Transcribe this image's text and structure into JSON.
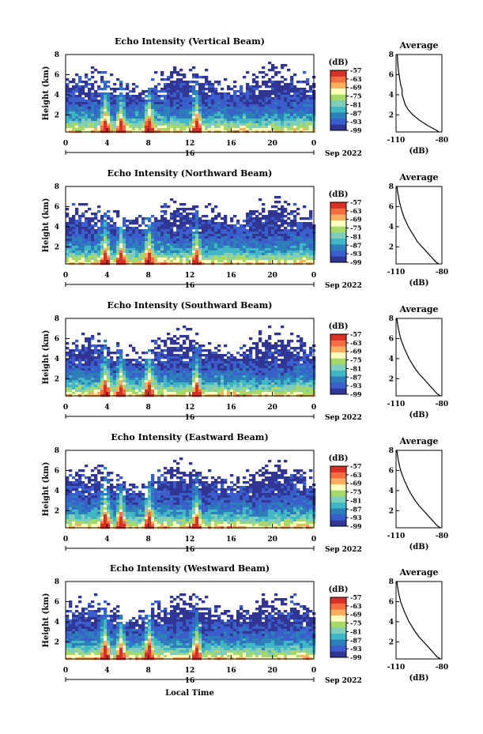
{
  "figure": {
    "x_axis_label": "Local Time",
    "date_label": "Sep 2022",
    "day_label": "16",
    "colorbar_unit": "(dB)",
    "average_title": "Average",
    "average_xlabel": "(dB)"
  },
  "colors": {
    "colormap": [
      "#313695",
      "#3a5fcd",
      "#2c7fb8",
      "#41b6c4",
      "#7fcdbb",
      "#a6d96a",
      "#ffffbf",
      "#fdae61",
      "#f46d43",
      "#d73027"
    ],
    "background": "#ffffff",
    "axis": "#000000"
  },
  "chart_data": [
    {
      "type": "heatmap",
      "title": "Echo Intensity (Vertical Beam)",
      "ylabel": "Height (km)",
      "xlabel": "",
      "x_ticks": [
        "0",
        "4",
        "8",
        "12",
        "16",
        "20",
        "0"
      ],
      "y_ticks": [
        "2",
        "4",
        "6",
        "8"
      ],
      "xlim": [
        0,
        24
      ],
      "ylim": [
        0.3,
        8
      ],
      "colorbar": {
        "label": "(dB)",
        "ticks": [
          "-57",
          "-63",
          "-69",
          "-75",
          "-81",
          "-87",
          "-93",
          "-99"
        ],
        "range": [
          -99,
          -57
        ]
      },
      "spikes_hours": [
        3.7,
        5.2,
        7.9,
        12.5
      ],
      "average_profile": {
        "title": "Average",
        "xlabel": "(dB)",
        "x_ticks": [
          "-110",
          "-80"
        ],
        "xlim": [
          -110,
          -80
        ],
        "y_ticks": [
          "2",
          "4",
          "6",
          "8"
        ],
        "ylim": [
          0.3,
          8
        ],
        "height": [
          0.3,
          0.5,
          1.0,
          1.5,
          2.0,
          2.5,
          3.0,
          3.5,
          4.0,
          4.5,
          5.0,
          5.5,
          6.0,
          6.5,
          7.0,
          7.5,
          8.0
        ],
        "db": [
          -82,
          -84,
          -90,
          -95,
          -99,
          -102,
          -104,
          -105,
          -106,
          -106,
          -107,
          -107.5,
          -108,
          -108.5,
          -108.8,
          -109,
          -109.2
        ]
      }
    },
    {
      "type": "heatmap",
      "title": "Echo Intensity (Northward Beam)",
      "ylabel": "Height (km)",
      "xlabel": "",
      "x_ticks": [
        "0",
        "4",
        "8",
        "12",
        "16",
        "20",
        "0"
      ],
      "y_ticks": [
        "2",
        "4",
        "6",
        "8"
      ],
      "xlim": [
        0,
        24
      ],
      "ylim": [
        0.3,
        8
      ],
      "colorbar": {
        "label": "(dB)",
        "ticks": [
          "-57",
          "-63",
          "-69",
          "-75",
          "-81",
          "-87",
          "-93",
          "-99"
        ],
        "range": [
          -99,
          -57
        ]
      },
      "spikes_hours": [
        3.7,
        5.2,
        7.9,
        12.5
      ],
      "average_profile": {
        "title": "Average",
        "xlabel": "(dB)",
        "x_ticks": [
          "-110",
          "-80"
        ],
        "xlim": [
          -110,
          -80
        ],
        "y_ticks": [
          "2",
          "4",
          "6",
          "8"
        ],
        "ylim": [
          0.3,
          8
        ],
        "height": [
          0.3,
          0.5,
          1.0,
          1.5,
          2.0,
          2.5,
          3.0,
          3.5,
          4.0,
          4.5,
          5.0,
          5.5,
          6.0,
          6.5,
          7.0,
          7.5,
          8.0
        ],
        "db": [
          -82,
          -84,
          -87,
          -90,
          -93,
          -96,
          -98,
          -100,
          -102,
          -103.5,
          -105,
          -106,
          -107,
          -107.8,
          -108.4,
          -109,
          -109.4
        ]
      }
    },
    {
      "type": "heatmap",
      "title": "Echo Intensity (Southward Beam)",
      "ylabel": "Height (km)",
      "xlabel": "",
      "x_ticks": [
        "0",
        "4",
        "8",
        "12",
        "16",
        "20",
        "0"
      ],
      "y_ticks": [
        "2",
        "4",
        "6",
        "8"
      ],
      "xlim": [
        0,
        24
      ],
      "ylim": [
        0.3,
        8
      ],
      "colorbar": {
        "label": "(dB)",
        "ticks": [
          "-57",
          "-63",
          "-69",
          "-75",
          "-81",
          "-87",
          "-93",
          "-99"
        ],
        "range": [
          -99,
          -57
        ]
      },
      "spikes_hours": [
        3.7,
        5.2,
        7.9,
        12.5
      ],
      "average_profile": {
        "title": "Average",
        "xlabel": "(dB)",
        "x_ticks": [
          "-110",
          "-80"
        ],
        "xlim": [
          -110,
          -80
        ],
        "y_ticks": [
          "2",
          "4",
          "6",
          "8"
        ],
        "ylim": [
          0.3,
          8
        ],
        "height": [
          0.3,
          0.5,
          1.0,
          1.5,
          2.0,
          2.5,
          3.0,
          3.5,
          4.0,
          4.5,
          5.0,
          5.5,
          6.0,
          6.5,
          7.0,
          7.5,
          8.0
        ],
        "db": [
          -81,
          -83,
          -86,
          -89,
          -92,
          -95,
          -97.5,
          -99.5,
          -101.5,
          -103,
          -104.5,
          -105.8,
          -107,
          -107.8,
          -108.5,
          -109,
          -109.5
        ]
      }
    },
    {
      "type": "heatmap",
      "title": "Echo Intensity (Eastward Beam)",
      "ylabel": "Height (km)",
      "xlabel": "",
      "x_ticks": [
        "0",
        "4",
        "8",
        "12",
        "16",
        "20",
        "0"
      ],
      "y_ticks": [
        "2",
        "4",
        "6",
        "8"
      ],
      "xlim": [
        0,
        24
      ],
      "ylim": [
        0.3,
        8
      ],
      "colorbar": {
        "label": "(dB)",
        "ticks": [
          "-57",
          "-63",
          "-69",
          "-75",
          "-81",
          "-87",
          "-93",
          "-99"
        ],
        "range": [
          -99,
          -57
        ]
      },
      "spikes_hours": [
        3.7,
        5.2,
        7.9,
        12.5
      ],
      "average_profile": {
        "title": "Average",
        "xlabel": "(dB)",
        "x_ticks": [
          "-110",
          "-80"
        ],
        "xlim": [
          -110,
          -80
        ],
        "y_ticks": [
          "2",
          "4",
          "6",
          "8"
        ],
        "ylim": [
          0.3,
          8
        ],
        "height": [
          0.3,
          0.5,
          1.0,
          1.5,
          2.0,
          2.5,
          3.0,
          3.5,
          4.0,
          4.5,
          5.0,
          5.5,
          6.0,
          6.5,
          7.0,
          7.5,
          8.0
        ],
        "db": [
          -81,
          -83,
          -86,
          -89,
          -92,
          -95,
          -97.5,
          -99.5,
          -101.5,
          -103,
          -104.5,
          -105.8,
          -107,
          -107.8,
          -108.5,
          -109,
          -109.5
        ]
      }
    },
    {
      "type": "heatmap",
      "title": "Echo Intensity (Westward Beam)",
      "ylabel": "Height (km)",
      "xlabel": "Local Time",
      "x_ticks": [
        "0",
        "4",
        "8",
        "12",
        "16",
        "20",
        "0"
      ],
      "y_ticks": [
        "2",
        "4",
        "6",
        "8"
      ],
      "xlim": [
        0,
        24
      ],
      "ylim": [
        0.3,
        8
      ],
      "colorbar": {
        "label": "(dB)",
        "ticks": [
          "-57",
          "-63",
          "-69",
          "-75",
          "-81",
          "-87",
          "-93",
          "-99"
        ],
        "range": [
          -99,
          -57
        ]
      },
      "spikes_hours": [
        3.7,
        5.2,
        7.9,
        12.5
      ],
      "average_profile": {
        "title": "Average",
        "xlabel": "(dB)",
        "x_ticks": [
          "-110",
          "-80"
        ],
        "xlim": [
          -110,
          -80
        ],
        "y_ticks": [
          "2",
          "4",
          "6",
          "8"
        ],
        "ylim": [
          0.3,
          8
        ],
        "height": [
          0.3,
          0.5,
          1.0,
          1.5,
          2.0,
          2.5,
          3.0,
          3.5,
          4.0,
          4.5,
          5.0,
          5.5,
          6.0,
          6.5,
          7.0,
          7.5,
          8.0
        ],
        "db": [
          -81,
          -83,
          -86,
          -89,
          -92,
          -95,
          -97.5,
          -99.5,
          -101.5,
          -103,
          -104.5,
          -105.8,
          -107,
          -107.8,
          -108.5,
          -109,
          -109.5
        ]
      }
    }
  ]
}
